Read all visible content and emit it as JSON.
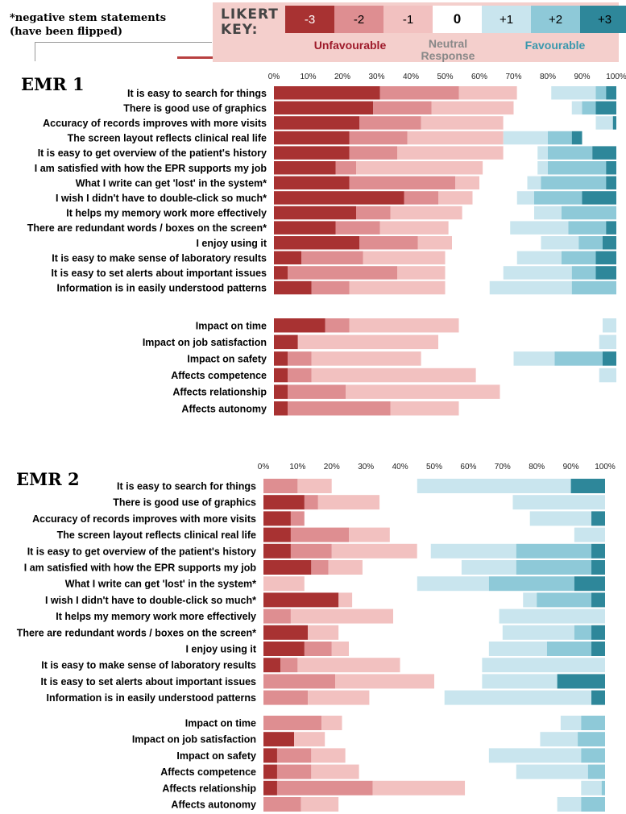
{
  "note": {
    "line1": "*negative stem statements",
    "line2": "(have been flipped)"
  },
  "key": {
    "title_line1": "LIKERT",
    "title_line2": "KEY:",
    "levels": [
      {
        "label": "-3",
        "color": "#a83232",
        "text_color": "#ffffff"
      },
      {
        "label": "-2",
        "color": "#de8e91",
        "text_color": "#000000"
      },
      {
        "label": "-1",
        "color": "#f2c1c0",
        "text_color": "#000000"
      },
      {
        "label": "0",
        "color": "#ffffff",
        "text_color": "#000000"
      },
      {
        "label": "+1",
        "color": "#c9e5ee",
        "text_color": "#000000"
      },
      {
        "label": "+2",
        "color": "#8ec9d8",
        "text_color": "#000000"
      },
      {
        "label": "+3",
        "color": "#2e879a",
        "text_color": "#000000"
      }
    ],
    "unfavourable": "Unfavourable",
    "neutral_line1": "Neutral",
    "neutral_line2": "Response",
    "favourable": "Favourable"
  },
  "chart_data": [
    {
      "type": "bar",
      "title": "EMR 1",
      "orientation": "horizontal",
      "stacked": true,
      "xlim": [
        0,
        100
      ],
      "xticks": [
        "0%",
        "10%",
        "20%",
        "30%",
        "40%",
        "50%",
        "60%",
        "70%",
        "80%",
        "90%",
        "100%"
      ],
      "series_order": [
        "-3",
        "-2",
        "-1",
        "0",
        "+1",
        "+2",
        "+3"
      ],
      "groups": [
        {
          "categories": [
            "It is easy to search for things",
            "There is good use of graphics",
            "Accuracy of records improves with more visits",
            "The screen layout reflects clinical real life",
            "It is easy to get overview of the patient's history",
            "I am satisfied with how the EPR supports my job",
            "What I write can get 'lost' in the system*",
            "I wish I didn't have to double-click so much*",
            "It helps my memory work more effectively",
            "There are redundant words / boxes on the screen*",
            "I enjoy using it",
            "It is easy to make sense of laboratory results",
            "It is easy to set alerts about important  issues",
            "Information is in easily understood patterns"
          ],
          "values": [
            [
              31,
              23,
              17,
              10,
              13,
              3,
              3
            ],
            [
              29,
              17,
              24,
              17,
              3,
              4,
              6
            ],
            [
              25,
              18,
              24,
              27,
              5,
              0,
              1
            ],
            [
              22,
              17,
              28,
              0,
              13,
              7,
              3
            ],
            [
              22,
              14,
              31,
              10,
              3,
              13,
              7
            ],
            [
              18,
              6,
              37,
              16,
              3,
              17,
              3
            ],
            [
              22,
              31,
              7,
              14,
              4,
              19,
              3
            ],
            [
              38,
              10,
              10,
              13,
              5,
              14,
              10
            ],
            [
              24,
              10,
              21,
              21,
              8,
              16,
              0
            ],
            [
              18,
              13,
              20,
              18,
              17,
              11,
              3
            ],
            [
              25,
              17,
              10,
              26,
              11,
              7,
              4
            ],
            [
              8,
              18,
              24,
              21,
              13,
              10,
              6
            ],
            [
              4,
              32,
              14,
              17,
              20,
              7,
              6
            ],
            [
              11,
              11,
              28,
              13,
              24,
              13,
              0
            ]
          ]
        },
        {
          "categories": [
            "Impact on time",
            "Impact on job satisfaction",
            "Impact on safety",
            "Affects competence",
            "Affects relationship",
            "Affects autonomy"
          ],
          "values": [
            [
              15,
              7,
              32,
              42,
              4,
              0,
              0
            ],
            [
              7,
              0,
              41,
              47,
              5,
              0,
              0
            ],
            [
              4,
              7,
              32,
              27,
              12,
              14,
              4
            ],
            [
              4,
              7,
              48,
              36,
              5,
              0,
              0
            ],
            [
              4,
              17,
              45,
              34,
              0,
              0,
              0
            ],
            [
              4,
              30,
              20,
              46,
              0,
              0,
              0
            ]
          ]
        }
      ]
    },
    {
      "type": "bar",
      "title": "EMR 2",
      "orientation": "horizontal",
      "stacked": true,
      "xlim": [
        0,
        100
      ],
      "xticks": [
        "0%",
        "10%",
        "20%",
        "30%",
        "40%",
        "50%",
        "60%",
        "70%",
        "80%",
        "90%",
        "100%"
      ],
      "series_order": [
        "-3",
        "-2",
        "-1",
        "0",
        "+1",
        "+2",
        "+3"
      ],
      "groups": [
        {
          "categories": [
            "It is easy to search for things",
            "There is good use of graphics",
            "Accuracy of records improves with more visits",
            "The screen layout reflects clinical real life",
            "It is easy to get overview of the patient's history",
            "I am satisfied with how the EPR supports my job",
            "What I write can get 'lost' in the system*",
            "I wish I didn't have to double-click so much*",
            "It helps my memory work more effectively",
            "There are redundant words / boxes on the screen*",
            "I enjoy using it",
            "It is easy to make sense of laboratory results",
            "It is easy to set alerts about important  issues",
            "Information is in easily understood patterns"
          ],
          "values": [
            [
              0,
              10,
              10,
              25,
              45,
              0,
              10
            ],
            [
              12,
              4,
              18,
              39,
              27,
              0,
              0
            ],
            [
              8,
              4,
              0,
              66,
              18,
              0,
              4
            ],
            [
              8,
              17,
              12,
              54,
              9,
              0,
              0
            ],
            [
              8,
              12,
              25,
              4,
              25,
              22,
              4
            ],
            [
              14,
              5,
              10,
              29,
              16,
              22,
              4
            ],
            [
              0,
              0,
              12,
              33,
              21,
              25,
              9
            ],
            [
              22,
              0,
              4,
              50,
              4,
              16,
              4
            ],
            [
              0,
              8,
              30,
              31,
              31,
              0,
              0
            ],
            [
              13,
              0,
              9,
              48,
              21,
              5,
              4
            ],
            [
              12,
              8,
              5,
              41,
              17,
              13,
              4
            ],
            [
              5,
              5,
              30,
              24,
              36,
              0,
              0
            ],
            [
              0,
              21,
              29,
              14,
              22,
              0,
              14
            ],
            [
              0,
              13,
              18,
              22,
              43,
              0,
              4
            ]
          ]
        },
        {
          "categories": [
            "Impact on time",
            "Impact on job satisfaction",
            "Impact on safety",
            "Affects competence",
            "Affects relationship",
            "Affects autonomy"
          ],
          "values": [
            [
              0,
              17,
              6,
              64,
              6,
              7,
              0
            ],
            [
              9,
              0,
              9,
              63,
              11,
              8,
              0
            ],
            [
              4,
              10,
              10,
              42,
              27,
              7,
              0
            ],
            [
              4,
              10,
              14,
              46,
              21,
              5,
              0
            ],
            [
              4,
              28,
              27,
              34,
              6,
              1,
              0
            ],
            [
              0,
              11,
              11,
              64,
              7,
              7,
              0
            ]
          ]
        }
      ]
    }
  ]
}
